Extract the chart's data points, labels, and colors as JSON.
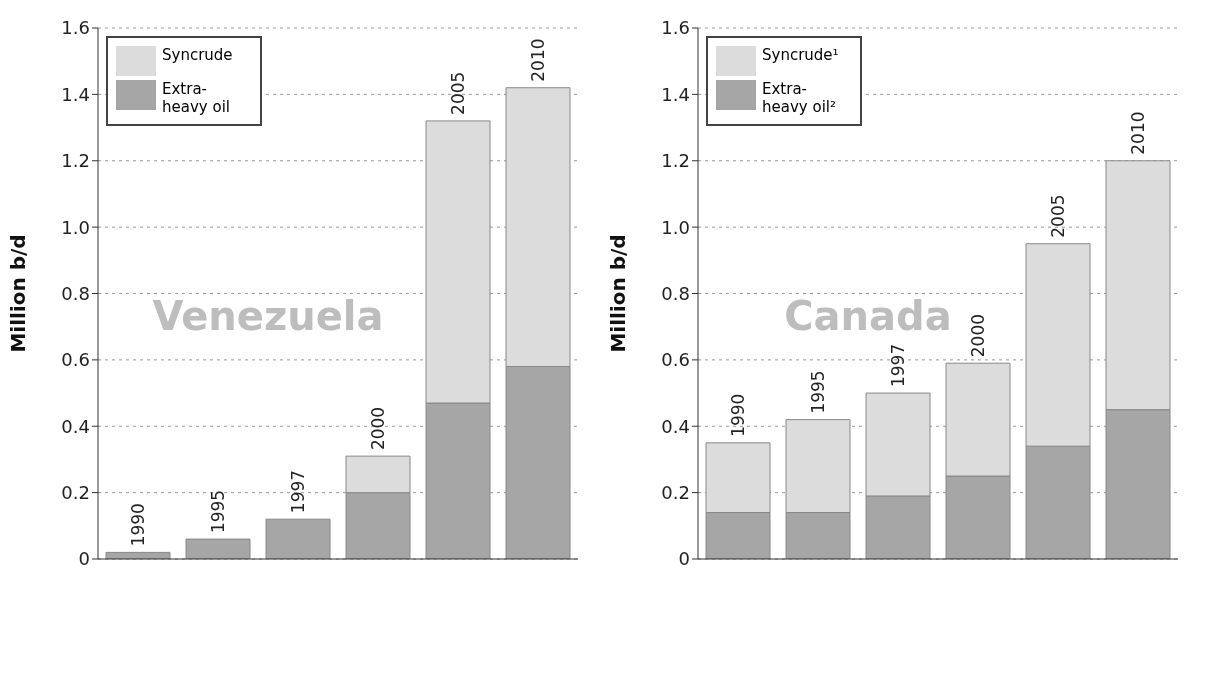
{
  "chart_data": [
    {
      "type": "bar",
      "stacked": true,
      "ylabel": "Million b/d",
      "annotations": [
        "Venezuela"
      ],
      "categories": [
        "1990",
        "1995",
        "1997",
        "2000",
        "2005",
        "2010"
      ],
      "series": [
        {
          "name": "Extra-heavy oil",
          "color": "#a6a6a6",
          "values": [
            0.02,
            0.06,
            0.12,
            0.2,
            0.47,
            0.58
          ]
        },
        {
          "name": "Syncrude",
          "color": "#dcdcdc",
          "values": [
            0,
            0,
            0,
            0.11,
            0.85,
            0.84
          ]
        }
      ],
      "ylim": [
        0,
        1.6
      ],
      "yticks": [
        0,
        0.2,
        0.4,
        0.6,
        0.8,
        {
          "value": 1,
          "label": "1.0"
        },
        1.2,
        1.4,
        1.6
      ],
      "grid": "y",
      "legend": "top left"
    },
    {
      "type": "bar",
      "stacked": true,
      "ylabel": "Million b/d",
      "annotations": [
        "Canada"
      ],
      "categories": [
        "1990",
        "1995",
        "1997",
        "2000",
        "2005",
        "2010"
      ],
      "series": [
        {
          "name": "Extra-heavy oil²",
          "color": "#a6a6a6",
          "values": [
            0.14,
            0.14,
            0.19,
            0.25,
            0.34,
            0.45
          ]
        },
        {
          "name": "Syncrude¹",
          "color": "#dcdcdc",
          "values": [
            0.21,
            0.28,
            0.31,
            0.34,
            0.61,
            0.75
          ]
        }
      ],
      "ylim": [
        0,
        1.6
      ],
      "yticks": [
        0,
        0.2,
        0.4,
        0.6,
        0.8,
        {
          "value": 1,
          "label": "1.0"
        },
        1.2,
        1.4,
        1.6
      ],
      "grid": "y",
      "legend": "top left"
    }
  ]
}
